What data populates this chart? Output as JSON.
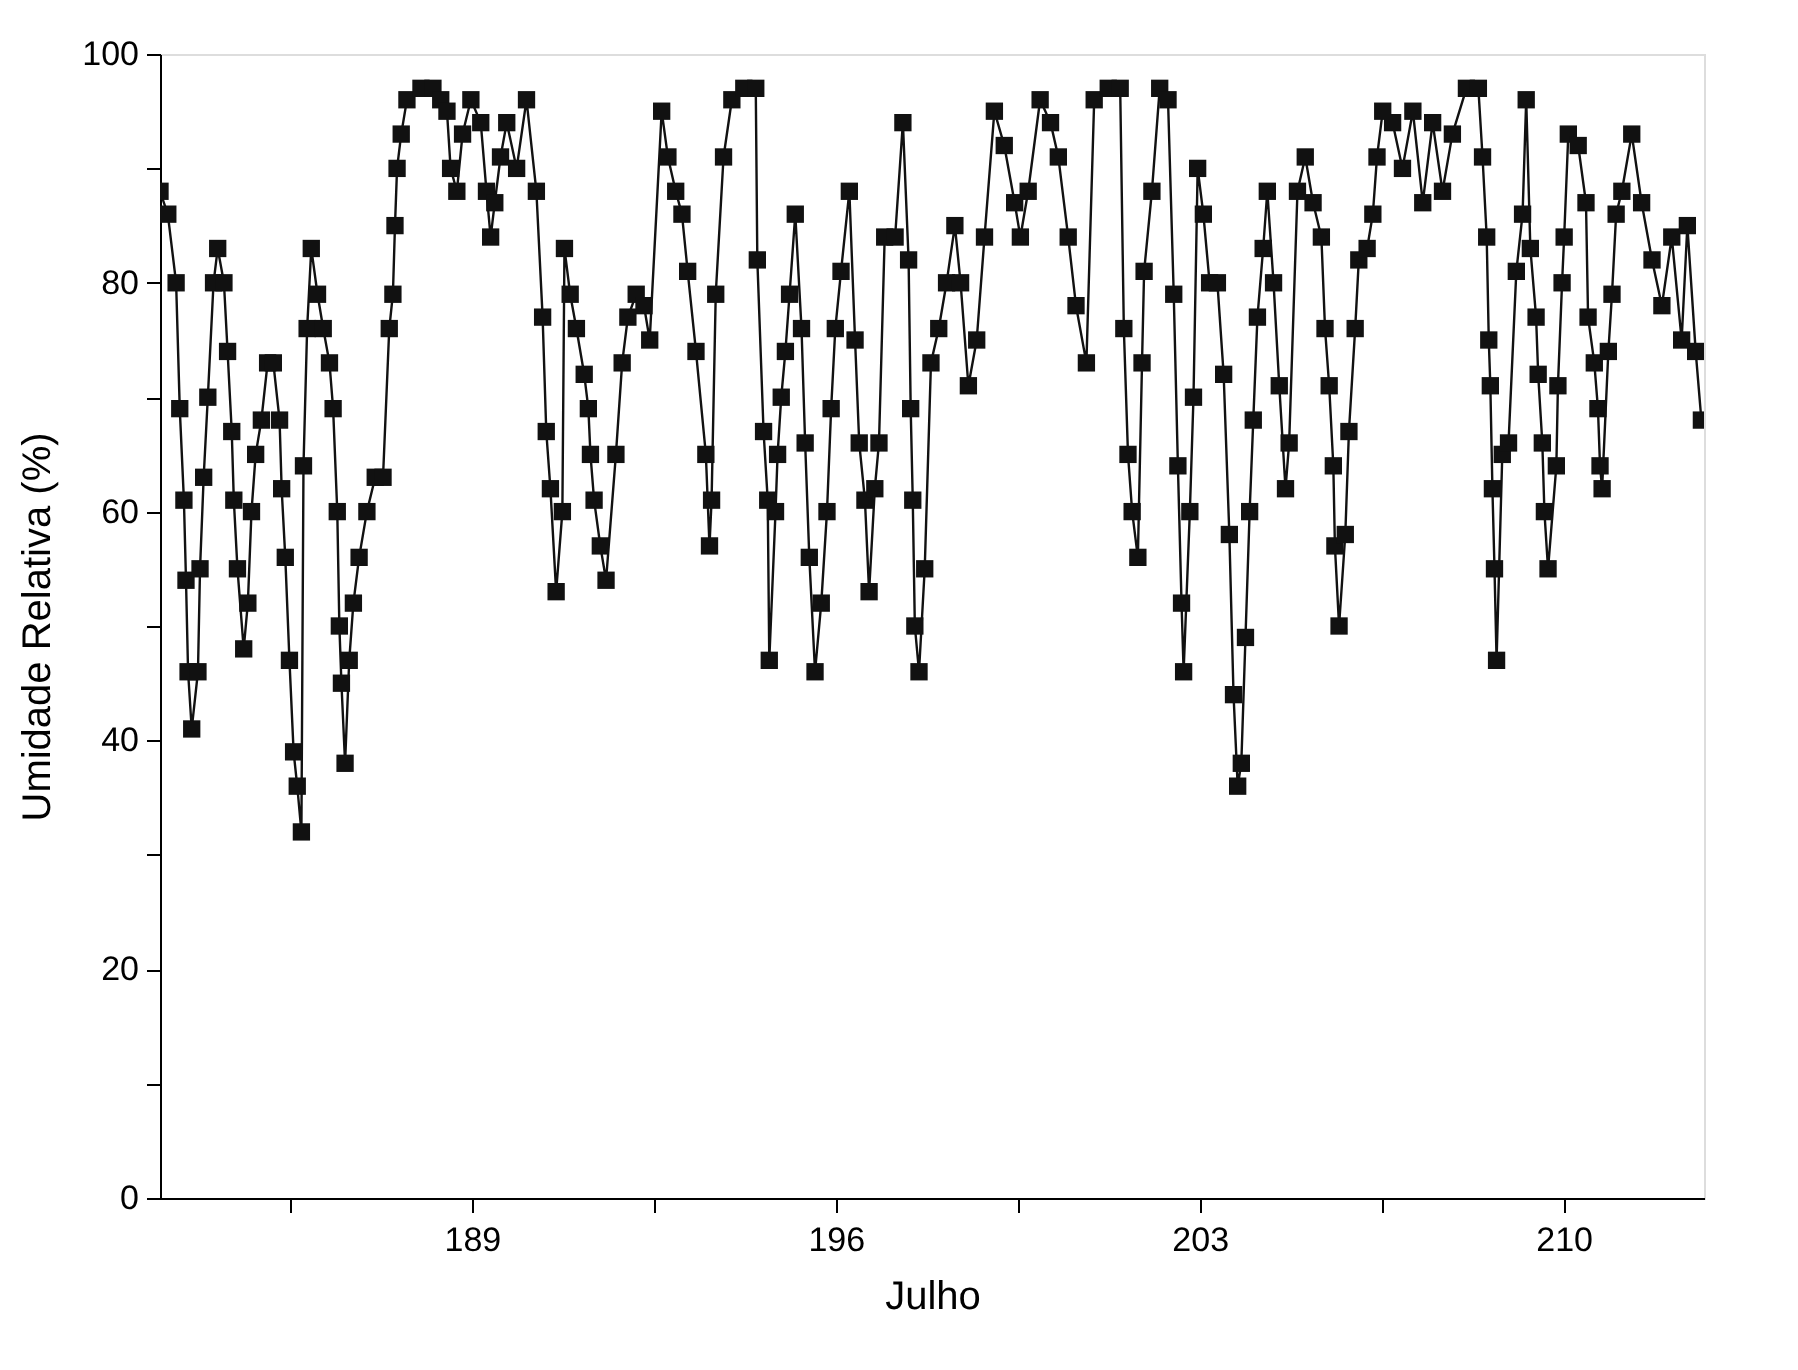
{
  "chart_data": {
    "type": "line",
    "xlabel": "Julho",
    "ylabel": "Umidade Relativa (%)",
    "marker": "square",
    "line_style": "solid",
    "grid": false,
    "legend": false,
    "xlim": [
      183,
      212.7
    ],
    "ylim": [
      0,
      100
    ],
    "xticks": [
      {
        "value": 185.5,
        "label": null
      },
      189,
      {
        "value": 192.5,
        "label": null
      },
      196,
      {
        "value": 199.5,
        "label": null
      },
      203,
      {
        "value": 206.5,
        "label": null
      },
      210
    ],
    "yticks": [
      0,
      {
        "value": 10,
        "label": null
      },
      20,
      {
        "value": 30,
        "label": null
      },
      40,
      {
        "value": 50,
        "label": null
      },
      60,
      {
        "value": 70,
        "label": null
      },
      80,
      {
        "value": 90,
        "label": null
      },
      100
    ],
    "series": [
      {
        "color": "#111111",
        "x": [
          183.0,
          183.15,
          183.31,
          183.38,
          183.46,
          183.5,
          183.54,
          183.61,
          183.73,
          183.77,
          183.84,
          183.92,
          184.03,
          184.11,
          184.23,
          184.3,
          184.38,
          184.42,
          184.49,
          184.61,
          184.69,
          184.76,
          184.84,
          184.95,
          185.07,
          185.18,
          185.3,
          185.34,
          185.41,
          185.49,
          185.57,
          185.64,
          185.72,
          185.76,
          185.83,
          185.91,
          186.03,
          186.14,
          186.26,
          186.33,
          186.41,
          186.45,
          186.49,
          186.56,
          186.64,
          186.72,
          186.83,
          186.98,
          187.14,
          187.29,
          187.41,
          187.48,
          187.52,
          187.56,
          187.64,
          187.75,
          188.02,
          188.25,
          188.4,
          188.52,
          188.59,
          188.71,
          188.82,
          188.98,
          189.17,
          189.28,
          189.36,
          189.44,
          189.55,
          189.67,
          189.86,
          190.05,
          190.24,
          190.36,
          190.43,
          190.51,
          190.62,
          190.74,
          190.78,
          190.89,
          191.01,
          191.16,
          191.24,
          191.28,
          191.35,
          191.47,
          191.58,
          191.77,
          191.89,
          192.0,
          192.16,
          192.31,
          192.42,
          192.65,
          192.77,
          192.92,
          193.04,
          193.15,
          193.31,
          193.5,
          193.57,
          193.61,
          193.69,
          193.84,
          194.0,
          194.23,
          194.46,
          194.49,
          194.61,
          194.69,
          194.72,
          194.84,
          194.88,
          194.95,
          195.03,
          195.11,
          195.22,
          195.34,
          195.41,
          195.49,
          195.6,
          195.72,
          195.83,
          195.91,
          195.99,
          196.1,
          196.26,
          196.37,
          196.45,
          196.56,
          196.64,
          196.75,
          196.83,
          196.94,
          197.14,
          197.29,
          197.4,
          197.44,
          197.48,
          197.52,
          197.6,
          197.71,
          197.83,
          197.98,
          198.13,
          198.29,
          198.4,
          198.55,
          198.71,
          198.86,
          199.05,
          199.24,
          199.44,
          199.55,
          199.7,
          199.93,
          200.13,
          200.28,
          200.47,
          200.62,
          200.82,
          200.97,
          201.24,
          201.47,
          201.54,
          201.62,
          201.7,
          201.81,
          201.89,
          201.93,
          202.08,
          202.23,
          202.39,
          202.5,
          202.58,
          202.65,
          202.69,
          202.81,
          202.88,
          202.96,
          203.07,
          203.19,
          203.34,
          203.46,
          203.57,
          203.65,
          203.73,
          203.8,
          203.88,
          203.96,
          204.03,
          204.11,
          204.22,
          204.3,
          204.42,
          204.53,
          204.65,
          204.72,
          204.88,
          205.03,
          205.18,
          205.34,
          205.41,
          205.49,
          205.57,
          205.6,
          205.68,
          205.8,
          205.87,
          205.99,
          206.06,
          206.22,
          206.33,
          206.41,
          206.52,
          206.71,
          206.9,
          207.1,
          207.29,
          207.48,
          207.67,
          207.86,
          208.13,
          208.36,
          208.44,
          208.52,
          208.56,
          208.59,
          208.63,
          208.67,
          208.71,
          208.82,
          208.94,
          209.09,
          209.21,
          209.28,
          209.36,
          209.47,
          209.51,
          209.59,
          209.63,
          209.7,
          209.86,
          209.89,
          209.97,
          210.01,
          210.09,
          210.28,
          210.43,
          210.47,
          210.59,
          210.66,
          210.7,
          210.74,
          210.86,
          210.93,
          211.01,
          211.12,
          211.31,
          211.5,
          211.7,
          211.89,
          212.08,
          212.27,
          212.38,
          212.54,
          212.65
        ],
        "values": [
          88,
          86,
          80,
          69,
          61,
          54,
          46,
          41,
          46,
          55,
          63,
          70,
          80,
          83,
          80,
          74,
          67,
          61,
          55,
          48,
          52,
          60,
          65,
          68,
          73,
          73,
          68,
          62,
          56,
          47,
          39,
          36,
          32,
          64,
          76,
          83,
          79,
          76,
          73,
          69,
          60,
          50,
          45,
          38,
          47,
          52,
          56,
          60,
          63,
          63,
          76,
          79,
          85,
          90,
          93,
          96,
          97,
          97,
          96,
          95,
          90,
          88,
          93,
          96,
          94,
          88,
          84,
          87,
          91,
          94,
          90,
          96,
          88,
          77,
          67,
          62,
          53,
          60,
          83,
          79,
          76,
          72,
          69,
          65,
          61,
          57,
          54,
          65,
          73,
          77,
          79,
          78,
          75,
          95,
          91,
          88,
          86,
          81,
          74,
          65,
          57,
          61,
          79,
          91,
          96,
          97,
          97,
          82,
          67,
          61,
          47,
          60,
          65,
          70,
          74,
          79,
          86,
          76,
          66,
          56,
          46,
          52,
          60,
          69,
          76,
          81,
          88,
          75,
          66,
          61,
          53,
          62,
          66,
          84,
          84,
          94,
          82,
          69,
          61,
          50,
          46,
          55,
          73,
          76,
          80,
          85,
          80,
          71,
          75,
          84,
          95,
          92,
          87,
          84,
          88,
          96,
          94,
          91,
          84,
          78,
          73,
          96,
          97,
          97,
          76,
          65,
          60,
          56,
          73,
          81,
          88,
          97,
          96,
          79,
          64,
          52,
          46,
          60,
          70,
          90,
          86,
          80,
          80,
          72,
          58,
          44,
          36,
          38,
          49,
          60,
          68,
          77,
          83,
          88,
          80,
          71,
          62,
          66,
          88,
          91,
          87,
          84,
          76,
          71,
          64,
          57,
          50,
          58,
          67,
          76,
          82,
          83,
          86,
          91,
          95,
          94,
          90,
          95,
          87,
          94,
          88,
          93,
          97,
          97,
          91,
          84,
          75,
          71,
          62,
          55,
          47,
          65,
          66,
          81,
          86,
          96,
          83,
          77,
          72,
          66,
          60,
          55,
          64,
          71,
          80,
          84,
          93,
          92,
          87,
          77,
          73,
          69,
          64,
          62,
          74,
          79,
          86,
          88,
          93,
          87,
          82,
          78,
          84,
          75,
          85,
          74,
          68
        ]
      }
    ]
  }
}
